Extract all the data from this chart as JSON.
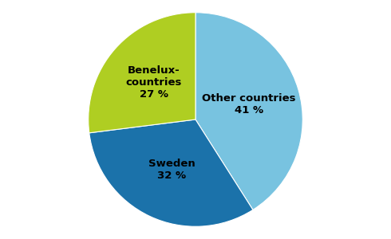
{
  "label_display": [
    "Other countries\n41 %",
    "Sweden\n32 %",
    "Benelux-\ncountries\n27 %"
  ],
  "values": [
    41,
    32,
    27
  ],
  "colors": [
    "#78C3E0",
    "#1B72AA",
    "#AFCE22"
  ],
  "startangle": 90,
  "background_color": "#ffffff",
  "text_colors": [
    "#000000",
    "#000000",
    "#000000"
  ],
  "label_radii": [
    0.52,
    0.52,
    0.52
  ],
  "fontsize": 9.5
}
